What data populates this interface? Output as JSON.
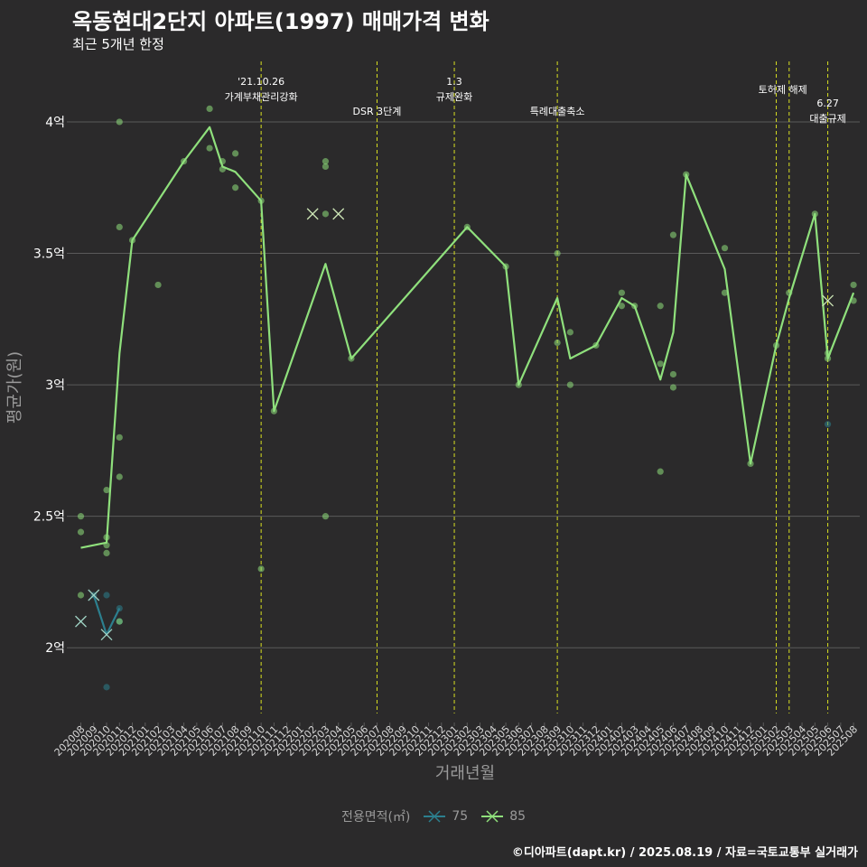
{
  "title": "옥동현대2단지 아파트(1997) 매매가격 변화",
  "subtitle": "최근 5개년 한정",
  "caption": "©디아파트(dapt.kr) / 2025.08.19 / 자료=국토교통부 실거래가",
  "colors": {
    "bg": "#2b2a2b",
    "grid": "#5a5a5a",
    "s75": "#2c7f8e",
    "s85": "#8fe07c",
    "event_line": "#d9e021",
    "axis_text": "#9a9a9a"
  },
  "chart_data": {
    "type": "line",
    "xlabel": "거래년월",
    "ylabel": "평균가(원)",
    "x_categories": [
      "202008",
      "202009",
      "202010",
      "202011",
      "202012",
      "202101",
      "202102",
      "202103",
      "202104",
      "202105",
      "202106",
      "202107",
      "202108",
      "202109",
      "202110",
      "202111",
      "202112",
      "202201",
      "202202",
      "202203",
      "202204",
      "202205",
      "202206",
      "202207",
      "202208",
      "202209",
      "202210",
      "202211",
      "202212",
      "202301",
      "202302",
      "202303",
      "202304",
      "202305",
      "202306",
      "202307",
      "202308",
      "202309",
      "202310",
      "202311",
      "202312",
      "202401",
      "202402",
      "202403",
      "202404",
      "202405",
      "202406",
      "202407",
      "202408",
      "202409",
      "202410",
      "202411",
      "202412",
      "202501",
      "202502",
      "202503",
      "202504",
      "202505",
      "202506",
      "202507",
      "202508"
    ],
    "y_ticks": [
      {
        "value": 2.0,
        "label": "2억"
      },
      {
        "value": 2.5,
        "label": "2.5억"
      },
      {
        "value": 3.0,
        "label": "3억"
      },
      {
        "value": 3.5,
        "label": "3.5억"
      },
      {
        "value": 4.0,
        "label": "4억"
      }
    ],
    "ylim": [
      1.75,
      4.23
    ],
    "legend": {
      "title": "전용면적(㎡)",
      "position": "bottom",
      "items": [
        {
          "name": "75",
          "series": "s75"
        },
        {
          "name": "85",
          "series": "s85"
        }
      ]
    },
    "events": [
      {
        "x": 14.0,
        "label": "'21.10.26\n가계부채관리강화",
        "row": 0
      },
      {
        "x": 23.0,
        "label": "DSR 3단계",
        "row": 2
      },
      {
        "x": 29.0,
        "label": "1.3\n규제완화",
        "row": 0
      },
      {
        "x": 37.0,
        "label": "특례대출축소",
        "row": 2
      },
      {
        "x": 54.0,
        "label": "토허제 해제",
        "row": 1,
        "anchor": 55.0
      },
      {
        "x": 55.0,
        "label": "",
        "row": 1
      },
      {
        "x": 58.0,
        "label": "6.27\n대출규제",
        "row": 3
      }
    ],
    "series": [
      {
        "name": "75",
        "color": "#2c7f8e",
        "line": [
          [
            1.0,
            2.2
          ],
          [
            2.0,
            2.05
          ],
          [
            3.0,
            2.15
          ]
        ],
        "cancelled": [
          [
            0.0,
            2.1
          ],
          [
            1.0,
            2.2
          ],
          [
            2.0,
            2.05
          ]
        ],
        "points": [
          [
            1.0,
            2.2
          ],
          [
            2.0,
            2.2
          ],
          [
            2.0,
            1.85
          ],
          [
            3.0,
            2.15
          ],
          [
            3.0,
            2.1
          ],
          [
            58.0,
            2.85
          ]
        ]
      },
      {
        "name": "85",
        "color": "#8fe07c",
        "line": [
          [
            0.0,
            2.38
          ],
          [
            2.0,
            2.4
          ],
          [
            3.0,
            3.12
          ],
          [
            4.0,
            3.55
          ],
          [
            8.0,
            3.85
          ],
          [
            10.0,
            3.98
          ],
          [
            11.0,
            3.83
          ],
          [
            12.0,
            3.81
          ],
          [
            14.0,
            3.7
          ],
          [
            15.0,
            2.9
          ],
          [
            19.0,
            3.46
          ],
          [
            21.0,
            3.1
          ],
          [
            30.0,
            3.6
          ],
          [
            33.0,
            3.45
          ],
          [
            34.0,
            3.0
          ],
          [
            37.0,
            3.33
          ],
          [
            38.0,
            3.1
          ],
          [
            40.0,
            3.15
          ],
          [
            42.0,
            3.33
          ],
          [
            43.0,
            3.3
          ],
          [
            45.0,
            3.02
          ],
          [
            46.0,
            3.2
          ],
          [
            47.0,
            3.8
          ],
          [
            50.0,
            3.44
          ],
          [
            52.0,
            2.7
          ],
          [
            54.0,
            3.15
          ],
          [
            55.0,
            3.33
          ],
          [
            57.0,
            3.65
          ],
          [
            58.0,
            3.1
          ],
          [
            60.0,
            3.35
          ]
        ],
        "cancelled": [
          [
            18.0,
            3.65
          ],
          [
            20.0,
            3.65
          ],
          [
            58.0,
            3.32
          ]
        ],
        "points": [
          [
            0.0,
            2.5
          ],
          [
            0.0,
            2.44
          ],
          [
            0.0,
            2.2
          ],
          [
            2.0,
            2.6
          ],
          [
            2.0,
            2.42
          ],
          [
            2.0,
            2.39
          ],
          [
            2.0,
            2.36
          ],
          [
            3.0,
            4.0
          ],
          [
            3.0,
            3.6
          ],
          [
            3.0,
            2.8
          ],
          [
            3.0,
            2.65
          ],
          [
            3.0,
            2.1
          ],
          [
            4.0,
            3.55
          ],
          [
            6.0,
            3.38
          ],
          [
            8.0,
            3.85
          ],
          [
            10.0,
            4.05
          ],
          [
            10.0,
            3.9
          ],
          [
            11.0,
            3.85
          ],
          [
            11.0,
            3.82
          ],
          [
            12.0,
            3.88
          ],
          [
            12.0,
            3.75
          ],
          [
            14.0,
            3.7
          ],
          [
            14.0,
            2.3
          ],
          [
            15.0,
            2.9
          ],
          [
            19.0,
            3.85
          ],
          [
            19.0,
            3.83
          ],
          [
            19.0,
            3.65
          ],
          [
            19.0,
            2.5
          ],
          [
            21.0,
            3.1
          ],
          [
            30.0,
            3.6
          ],
          [
            33.0,
            3.45
          ],
          [
            34.0,
            3.0
          ],
          [
            37.0,
            3.5
          ],
          [
            37.0,
            3.16
          ],
          [
            38.0,
            3.2
          ],
          [
            38.0,
            3.0
          ],
          [
            40.0,
            3.15
          ],
          [
            42.0,
            3.35
          ],
          [
            42.0,
            3.3
          ],
          [
            43.0,
            3.3
          ],
          [
            45.0,
            3.3
          ],
          [
            45.0,
            3.08
          ],
          [
            45.0,
            2.67
          ],
          [
            46.0,
            3.57
          ],
          [
            46.0,
            3.04
          ],
          [
            46.0,
            2.99
          ],
          [
            47.0,
            3.8
          ],
          [
            50.0,
            3.52
          ],
          [
            50.0,
            3.35
          ],
          [
            52.0,
            2.7
          ],
          [
            54.0,
            3.15
          ],
          [
            55.0,
            3.35
          ],
          [
            57.0,
            3.65
          ],
          [
            58.0,
            3.12
          ],
          [
            58.0,
            3.1
          ],
          [
            60.0,
            3.38
          ],
          [
            60.0,
            3.32
          ]
        ]
      }
    ]
  }
}
